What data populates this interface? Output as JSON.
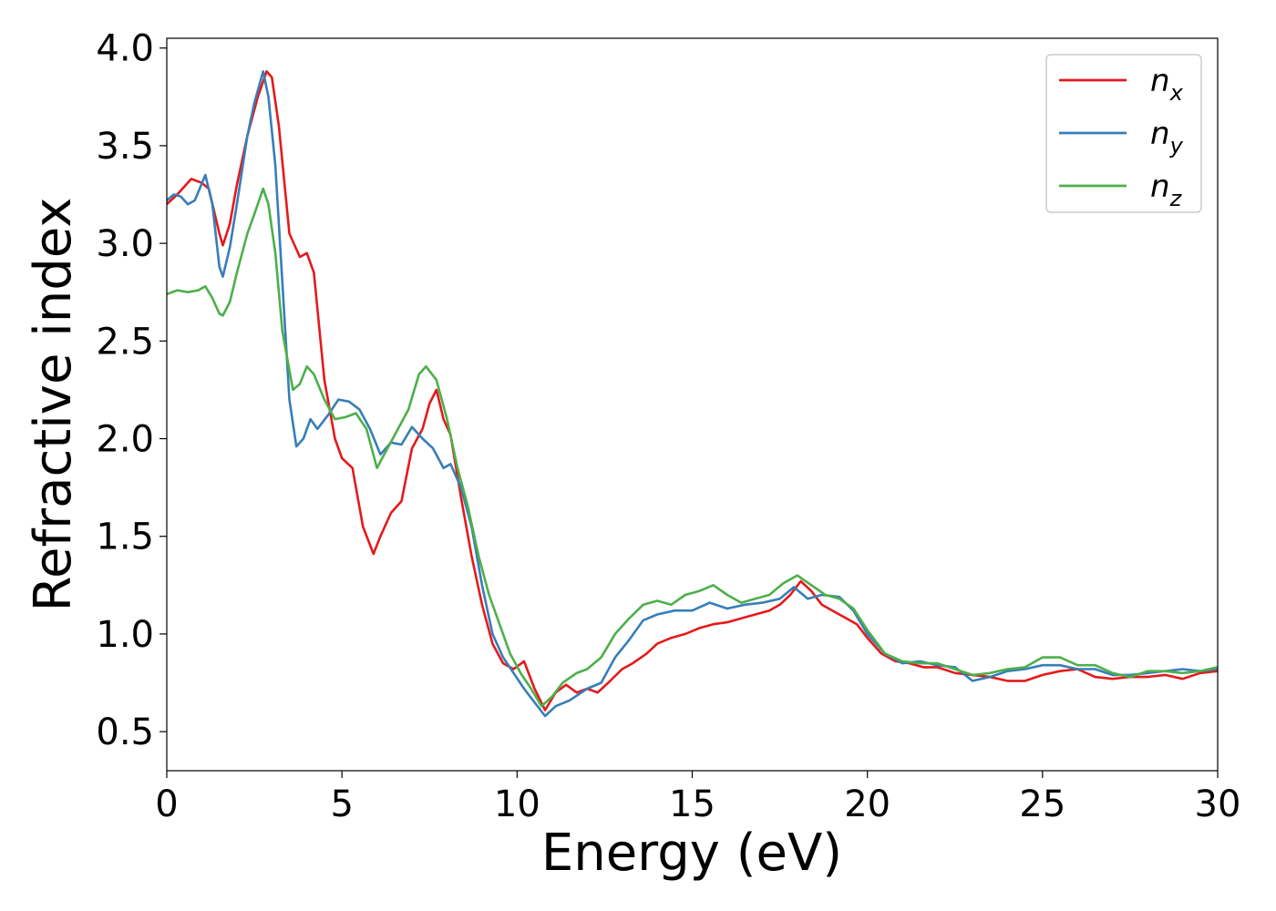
{
  "chart_data": {
    "type": "line",
    "title": "",
    "xlabel": "Energy (eV)",
    "ylabel": "Refractive index",
    "xlim": [
      0,
      30
    ],
    "ylim": [
      0.3,
      4.05
    ],
    "xticks": [
      "0",
      "5",
      "10",
      "15",
      "20",
      "25",
      "30"
    ],
    "xtick_values": [
      0,
      5,
      10,
      15,
      20,
      25,
      30
    ],
    "yticks": [
      "0.5",
      "1.0",
      "1.5",
      "2.0",
      "2.5",
      "3.0",
      "3.5",
      "4.0"
    ],
    "ytick_values": [
      0.5,
      1.0,
      1.5,
      2.0,
      2.5,
      3.0,
      3.5,
      4.0
    ],
    "grid": false,
    "legend_position": "top-right",
    "series": [
      {
        "name": "n_x",
        "legend_base": "n",
        "legend_sub": "x",
        "color": "#e41a1c",
        "points": [
          [
            0,
            3.2
          ],
          [
            0.3,
            3.25
          ],
          [
            0.7,
            3.33
          ],
          [
            1.0,
            3.31
          ],
          [
            1.2,
            3.28
          ],
          [
            1.5,
            3.05
          ],
          [
            1.6,
            2.99
          ],
          [
            1.8,
            3.1
          ],
          [
            2.0,
            3.3
          ],
          [
            2.3,
            3.55
          ],
          [
            2.6,
            3.75
          ],
          [
            2.85,
            3.88
          ],
          [
            3.0,
            3.85
          ],
          [
            3.2,
            3.6
          ],
          [
            3.5,
            3.05
          ],
          [
            3.8,
            2.93
          ],
          [
            4.0,
            2.95
          ],
          [
            4.2,
            2.85
          ],
          [
            4.5,
            2.3
          ],
          [
            4.8,
            2.0
          ],
          [
            5.0,
            1.9
          ],
          [
            5.3,
            1.85
          ],
          [
            5.6,
            1.55
          ],
          [
            5.9,
            1.41
          ],
          [
            6.1,
            1.5
          ],
          [
            6.4,
            1.62
          ],
          [
            6.7,
            1.68
          ],
          [
            7.0,
            1.95
          ],
          [
            7.3,
            2.05
          ],
          [
            7.5,
            2.18
          ],
          [
            7.7,
            2.25
          ],
          [
            7.9,
            2.1
          ],
          [
            8.1,
            2.02
          ],
          [
            8.4,
            1.7
          ],
          [
            8.7,
            1.4
          ],
          [
            9.0,
            1.15
          ],
          [
            9.3,
            0.95
          ],
          [
            9.6,
            0.85
          ],
          [
            9.9,
            0.82
          ],
          [
            10.2,
            0.86
          ],
          [
            10.5,
            0.72
          ],
          [
            10.8,
            0.61
          ],
          [
            11.1,
            0.7
          ],
          [
            11.4,
            0.74
          ],
          [
            11.7,
            0.7
          ],
          [
            12.0,
            0.72
          ],
          [
            12.3,
            0.7
          ],
          [
            12.6,
            0.75
          ],
          [
            13.0,
            0.82
          ],
          [
            13.3,
            0.85
          ],
          [
            13.7,
            0.9
          ],
          [
            14.0,
            0.95
          ],
          [
            14.4,
            0.98
          ],
          [
            14.8,
            1.0
          ],
          [
            15.2,
            1.03
          ],
          [
            15.6,
            1.05
          ],
          [
            16.0,
            1.06
          ],
          [
            16.4,
            1.08
          ],
          [
            16.8,
            1.1
          ],
          [
            17.2,
            1.12
          ],
          [
            17.5,
            1.15
          ],
          [
            17.8,
            1.2
          ],
          [
            18.1,
            1.27
          ],
          [
            18.4,
            1.22
          ],
          [
            18.7,
            1.15
          ],
          [
            19.0,
            1.12
          ],
          [
            19.4,
            1.08
          ],
          [
            19.7,
            1.05
          ],
          [
            20.0,
            0.98
          ],
          [
            20.4,
            0.9
          ],
          [
            20.8,
            0.86
          ],
          [
            21.2,
            0.85
          ],
          [
            21.6,
            0.83
          ],
          [
            22.0,
            0.83
          ],
          [
            22.5,
            0.8
          ],
          [
            23.0,
            0.79
          ],
          [
            23.5,
            0.78
          ],
          [
            24.0,
            0.76
          ],
          [
            24.5,
            0.76
          ],
          [
            25.0,
            0.79
          ],
          [
            25.5,
            0.81
          ],
          [
            26.0,
            0.82
          ],
          [
            26.5,
            0.78
          ],
          [
            27.0,
            0.77
          ],
          [
            27.5,
            0.78
          ],
          [
            28.0,
            0.78
          ],
          [
            28.5,
            0.79
          ],
          [
            29.0,
            0.77
          ],
          [
            29.5,
            0.8
          ],
          [
            30.0,
            0.81
          ]
        ]
      },
      {
        "name": "n_y",
        "legend_base": "n",
        "legend_sub": "y",
        "color": "#377eb8",
        "points": [
          [
            0,
            3.22
          ],
          [
            0.2,
            3.25
          ],
          [
            0.4,
            3.24
          ],
          [
            0.6,
            3.2
          ],
          [
            0.8,
            3.22
          ],
          [
            1.1,
            3.35
          ],
          [
            1.3,
            3.2
          ],
          [
            1.5,
            2.88
          ],
          [
            1.6,
            2.83
          ],
          [
            1.8,
            2.98
          ],
          [
            2.0,
            3.2
          ],
          [
            2.3,
            3.55
          ],
          [
            2.5,
            3.72
          ],
          [
            2.75,
            3.88
          ],
          [
            2.9,
            3.75
          ],
          [
            3.1,
            3.4
          ],
          [
            3.3,
            2.8
          ],
          [
            3.5,
            2.2
          ],
          [
            3.7,
            1.96
          ],
          [
            3.9,
            2.0
          ],
          [
            4.1,
            2.1
          ],
          [
            4.3,
            2.05
          ],
          [
            4.6,
            2.12
          ],
          [
            4.9,
            2.2
          ],
          [
            5.2,
            2.19
          ],
          [
            5.5,
            2.15
          ],
          [
            5.8,
            2.05
          ],
          [
            6.1,
            1.92
          ],
          [
            6.4,
            1.98
          ],
          [
            6.7,
            1.97
          ],
          [
            7.0,
            2.06
          ],
          [
            7.3,
            2.0
          ],
          [
            7.6,
            1.95
          ],
          [
            7.9,
            1.85
          ],
          [
            8.1,
            1.87
          ],
          [
            8.4,
            1.75
          ],
          [
            8.7,
            1.55
          ],
          [
            9.0,
            1.25
          ],
          [
            9.3,
            1.0
          ],
          [
            9.6,
            0.88
          ],
          [
            9.9,
            0.8
          ],
          [
            10.2,
            0.72
          ],
          [
            10.5,
            0.65
          ],
          [
            10.8,
            0.58
          ],
          [
            11.1,
            0.63
          ],
          [
            11.5,
            0.66
          ],
          [
            12.0,
            0.72
          ],
          [
            12.4,
            0.75
          ],
          [
            12.8,
            0.88
          ],
          [
            13.2,
            0.97
          ],
          [
            13.6,
            1.07
          ],
          [
            14.0,
            1.1
          ],
          [
            14.5,
            1.12
          ],
          [
            15.0,
            1.12
          ],
          [
            15.5,
            1.16
          ],
          [
            16.0,
            1.13
          ],
          [
            16.5,
            1.15
          ],
          [
            17.0,
            1.16
          ],
          [
            17.5,
            1.18
          ],
          [
            17.9,
            1.24
          ],
          [
            18.3,
            1.18
          ],
          [
            18.7,
            1.2
          ],
          [
            19.2,
            1.19
          ],
          [
            19.6,
            1.12
          ],
          [
            20.0,
            1.0
          ],
          [
            20.5,
            0.9
          ],
          [
            21.0,
            0.85
          ],
          [
            21.5,
            0.86
          ],
          [
            22.0,
            0.84
          ],
          [
            22.5,
            0.83
          ],
          [
            23.0,
            0.76
          ],
          [
            23.5,
            0.78
          ],
          [
            24.0,
            0.81
          ],
          [
            24.5,
            0.82
          ],
          [
            25.0,
            0.84
          ],
          [
            25.5,
            0.84
          ],
          [
            26.0,
            0.82
          ],
          [
            26.5,
            0.82
          ],
          [
            27.0,
            0.79
          ],
          [
            27.5,
            0.79
          ],
          [
            28.0,
            0.8
          ],
          [
            28.5,
            0.81
          ],
          [
            29.0,
            0.82
          ],
          [
            29.5,
            0.81
          ],
          [
            30.0,
            0.82
          ]
        ]
      },
      {
        "name": "n_z",
        "legend_base": "n",
        "legend_sub": "z",
        "color": "#4daf4a",
        "points": [
          [
            0,
            2.74
          ],
          [
            0.3,
            2.76
          ],
          [
            0.6,
            2.75
          ],
          [
            0.9,
            2.76
          ],
          [
            1.1,
            2.78
          ],
          [
            1.3,
            2.72
          ],
          [
            1.5,
            2.64
          ],
          [
            1.6,
            2.63
          ],
          [
            1.8,
            2.7
          ],
          [
            2.0,
            2.85
          ],
          [
            2.3,
            3.05
          ],
          [
            2.5,
            3.15
          ],
          [
            2.75,
            3.28
          ],
          [
            2.9,
            3.2
          ],
          [
            3.1,
            2.95
          ],
          [
            3.3,
            2.55
          ],
          [
            3.6,
            2.25
          ],
          [
            3.8,
            2.28
          ],
          [
            4.0,
            2.37
          ],
          [
            4.2,
            2.33
          ],
          [
            4.5,
            2.2
          ],
          [
            4.8,
            2.1
          ],
          [
            5.1,
            2.11
          ],
          [
            5.4,
            2.13
          ],
          [
            5.7,
            2.05
          ],
          [
            6.0,
            1.85
          ],
          [
            6.3,
            1.95
          ],
          [
            6.6,
            2.05
          ],
          [
            6.9,
            2.15
          ],
          [
            7.2,
            2.33
          ],
          [
            7.4,
            2.37
          ],
          [
            7.7,
            2.3
          ],
          [
            8.0,
            2.1
          ],
          [
            8.3,
            1.85
          ],
          [
            8.6,
            1.65
          ],
          [
            8.9,
            1.4
          ],
          [
            9.2,
            1.2
          ],
          [
            9.5,
            1.05
          ],
          [
            9.8,
            0.9
          ],
          [
            10.1,
            0.8
          ],
          [
            10.4,
            0.72
          ],
          [
            10.7,
            0.63
          ],
          [
            11.0,
            0.68
          ],
          [
            11.3,
            0.75
          ],
          [
            11.7,
            0.8
          ],
          [
            12.0,
            0.82
          ],
          [
            12.4,
            0.88
          ],
          [
            12.8,
            1.0
          ],
          [
            13.2,
            1.08
          ],
          [
            13.6,
            1.15
          ],
          [
            14.0,
            1.17
          ],
          [
            14.4,
            1.15
          ],
          [
            14.8,
            1.2
          ],
          [
            15.2,
            1.22
          ],
          [
            15.6,
            1.25
          ],
          [
            16.0,
            1.2
          ],
          [
            16.4,
            1.16
          ],
          [
            16.8,
            1.18
          ],
          [
            17.2,
            1.2
          ],
          [
            17.6,
            1.26
          ],
          [
            18.0,
            1.3
          ],
          [
            18.4,
            1.25
          ],
          [
            18.8,
            1.2
          ],
          [
            19.2,
            1.18
          ],
          [
            19.6,
            1.13
          ],
          [
            20.0,
            1.02
          ],
          [
            20.5,
            0.9
          ],
          [
            21.0,
            0.86
          ],
          [
            21.5,
            0.85
          ],
          [
            22.0,
            0.85
          ],
          [
            22.5,
            0.82
          ],
          [
            23.0,
            0.79
          ],
          [
            23.5,
            0.8
          ],
          [
            24.0,
            0.82
          ],
          [
            24.5,
            0.83
          ],
          [
            25.0,
            0.88
          ],
          [
            25.5,
            0.88
          ],
          [
            26.0,
            0.84
          ],
          [
            26.5,
            0.84
          ],
          [
            27.0,
            0.8
          ],
          [
            27.5,
            0.78
          ],
          [
            28.0,
            0.81
          ],
          [
            28.5,
            0.81
          ],
          [
            29.0,
            0.8
          ],
          [
            29.5,
            0.81
          ],
          [
            30.0,
            0.83
          ]
        ]
      }
    ]
  }
}
